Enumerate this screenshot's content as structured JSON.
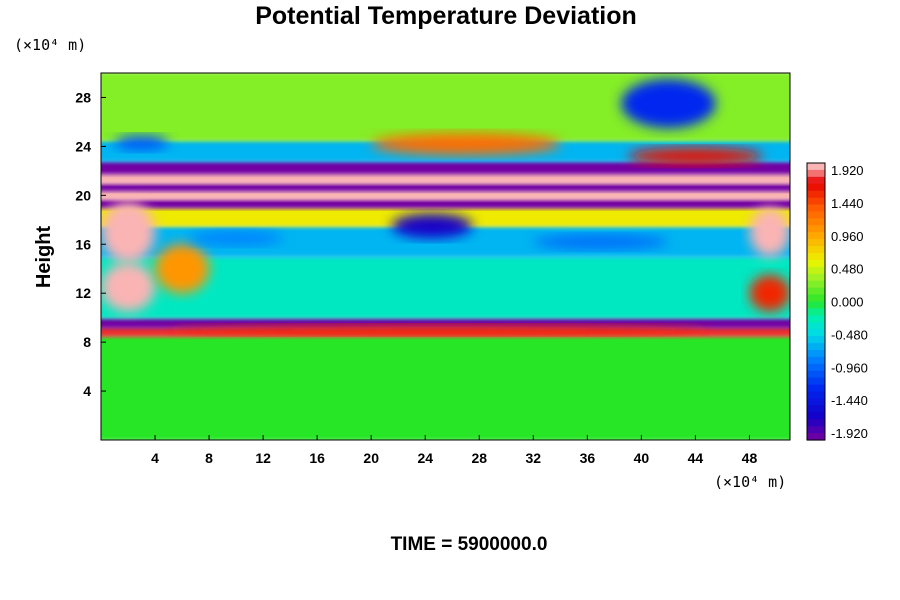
{
  "chart_data": {
    "type": "heatmap",
    "title": "Potential Temperature Deviation",
    "ylabel": "Height",
    "x_unit": "(×10⁴ m)",
    "y_unit": "(×10⁴ m)",
    "xlim": [
      0,
      51
    ],
    "ylim": [
      0,
      30
    ],
    "x_ticks": [
      4,
      8,
      12,
      16,
      20,
      24,
      28,
      32,
      36,
      40,
      44,
      48
    ],
    "y_ticks": [
      4,
      8,
      12,
      16,
      20,
      24,
      28
    ],
    "colorbar": {
      "min": -1.92,
      "max": 1.92,
      "tick_labels": [
        "1.920",
        "1.440",
        "0.960",
        "0.480",
        "0.000",
        "-0.480",
        "-0.960",
        "-1.440",
        "-1.920"
      ]
    },
    "time_label": "TIME = 5900000.0",
    "field_bands": [
      {
        "y_range": [
          0,
          8.5
        ],
        "value": 0.0
      },
      {
        "y_range": [
          8.5,
          9.2
        ],
        "value": 1.7
      },
      {
        "y_range": [
          9.2,
          10.0
        ],
        "value": -1.9
      },
      {
        "y_range": [
          10.0,
          15.0
        ],
        "value": -0.3
      },
      {
        "y_range": [
          15.0,
          17.5
        ],
        "value": -0.6
      },
      {
        "y_range": [
          17.5,
          19.0
        ],
        "value": 0.6
      },
      {
        "y_range": [
          19.0,
          19.7
        ],
        "value": -1.9
      },
      {
        "y_range": [
          19.7,
          20.4
        ],
        "value": 1.95
      },
      {
        "y_range": [
          20.4,
          21.0
        ],
        "value": -1.9
      },
      {
        "y_range": [
          21.0,
          21.8
        ],
        "value": 1.95
      },
      {
        "y_range": [
          21.8,
          22.8
        ],
        "value": -1.9
      },
      {
        "y_range": [
          22.8,
          24.5
        ],
        "value": -0.6
      },
      {
        "y_range": [
          24.5,
          30
        ],
        "value": 0.25
      }
    ],
    "anomalies": [
      {
        "x": 2,
        "y": 17,
        "rx": 2.0,
        "ry": 2.5,
        "value": 1.95
      },
      {
        "x": 2,
        "y": 12.5,
        "rx": 2.0,
        "ry": 2.0,
        "value": 1.95
      },
      {
        "x": 6,
        "y": 14,
        "rx": 2.0,
        "ry": 2.0,
        "value": 1.0
      },
      {
        "x": 49.5,
        "y": 17,
        "rx": 1.5,
        "ry": 2.0,
        "value": 1.95
      },
      {
        "x": 49.5,
        "y": 12,
        "rx": 1.5,
        "ry": 1.5,
        "value": 1.5
      },
      {
        "x": 42,
        "y": 27.5,
        "rx": 3.5,
        "ry": 2.0,
        "value": -1.2
      },
      {
        "x": 24.5,
        "y": 17.5,
        "rx": 3.0,
        "ry": 1.0,
        "value": -1.6
      },
      {
        "x": 10,
        "y": 16.5,
        "rx": 3.5,
        "ry": 0.6,
        "value": -0.8
      },
      {
        "x": 37,
        "y": 16.2,
        "rx": 5.0,
        "ry": 0.6,
        "value": -0.9
      },
      {
        "x": 44,
        "y": 23.2,
        "rx": 5.0,
        "ry": 0.7,
        "value": 1.6
      },
      {
        "x": 27,
        "y": 24.2,
        "rx": 7.0,
        "ry": 0.9,
        "value": 1.2
      },
      {
        "x": 3,
        "y": 24.3,
        "rx": 2.0,
        "ry": 0.6,
        "value": -1.0
      },
      {
        "x": 25,
        "y": 9.0,
        "rx": 20,
        "ry": 0.4,
        "value": 1.5
      }
    ]
  }
}
